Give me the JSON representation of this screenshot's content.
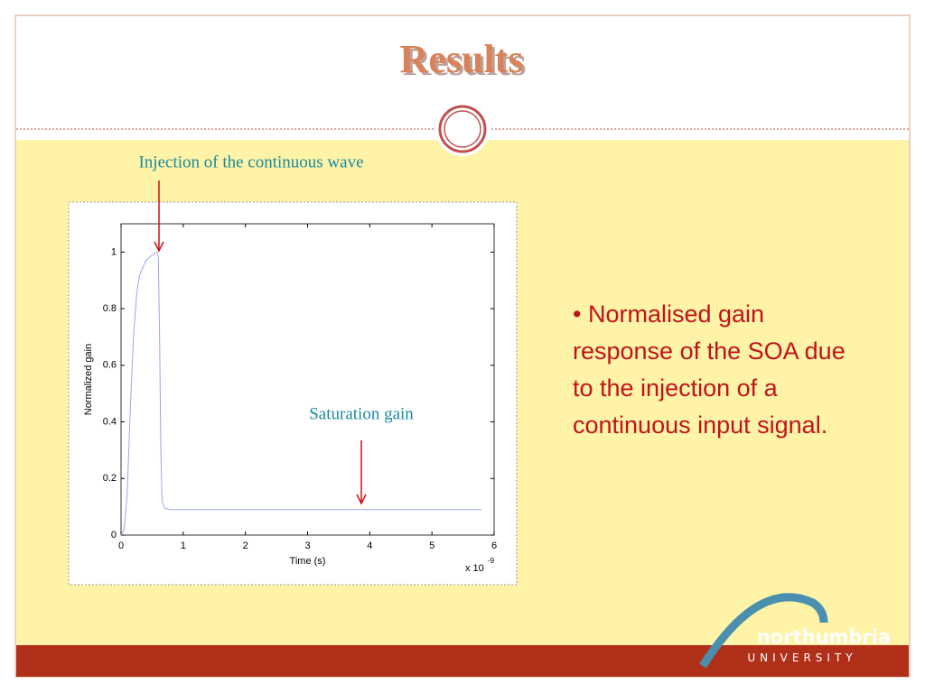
{
  "title": "Results",
  "annotations": [
    "Injection of the continuous wave",
    "Saturation gain"
  ],
  "bullet": "• Normalised gain response of the SOA due to the injection of a continuous input signal.",
  "logo": {
    "name": "northumbria",
    "subtitle": "UNIVERSITY"
  },
  "chart_data": {
    "type": "line",
    "x_label": "Time (s)",
    "y_label": "Normalized gain",
    "x_multiplier": "x 10",
    "x_exponent": "-9",
    "x": [
      0,
      0.05,
      0.1,
      0.15,
      0.2,
      0.25,
      0.3,
      0.4,
      0.5,
      0.58,
      0.6,
      0.62,
      0.64,
      0.66,
      0.7,
      0.8,
      1,
      2,
      3,
      4,
      5,
      5.8
    ],
    "series": [
      {
        "name": "Normalized gain",
        "color": "#9aa6e8",
        "values": [
          0,
          0.02,
          0.15,
          0.45,
          0.7,
          0.85,
          0.92,
          0.97,
          0.99,
          1.0,
          0.98,
          0.7,
          0.3,
          0.12,
          0.095,
          0.09,
          0.09,
          0.09,
          0.09,
          0.09,
          0.09,
          0.09
        ]
      }
    ],
    "xlim": [
      0,
      6
    ],
    "xticks": [
      0,
      1,
      2,
      3,
      4,
      5,
      6
    ],
    "ylim": [
      0,
      1.1
    ],
    "yticks": [
      0,
      0.2,
      0.4,
      0.6,
      0.8,
      1
    ],
    "grid": false
  }
}
